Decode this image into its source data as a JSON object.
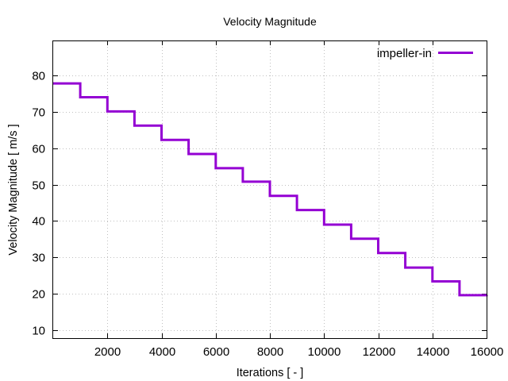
{
  "chart_data": {
    "type": "line",
    "title": "Velocity Magnitude",
    "xlabel": "Iterations [ - ]",
    "ylabel": "Velocity Magnitude [ m/s ]",
    "xlim": [
      0,
      16000
    ],
    "ylim": [
      7.8,
      89.6
    ],
    "grid": true,
    "legend_position": "top-right",
    "x_ticks": [
      2000,
      4000,
      6000,
      8000,
      10000,
      12000,
      14000,
      16000
    ],
    "x_tick_labels": [
      "2000",
      "4000",
      "6000",
      "8000",
      "10000",
      "12000",
      "14000",
      "16000"
    ],
    "y_ticks": [
      10,
      20,
      30,
      40,
      50,
      60,
      70,
      80
    ],
    "y_tick_labels": [
      "10",
      "20",
      "30",
      "40",
      "50",
      "60",
      "70",
      "80"
    ],
    "series": [
      {
        "name": "impeller-in",
        "color": "#9400d3",
        "step": true,
        "x": [
          0,
          1000,
          2000,
          3000,
          4000,
          5000,
          6000,
          7000,
          8000,
          9000,
          10000,
          11000,
          12000,
          13000,
          14000,
          15000,
          16000
        ],
        "values": [
          77.8,
          74.0,
          70.1,
          66.2,
          62.3,
          58.4,
          54.5,
          50.8,
          46.9,
          43.0,
          39.0,
          35.1,
          31.2,
          27.2,
          23.4,
          19.6,
          19.7
        ]
      }
    ]
  }
}
